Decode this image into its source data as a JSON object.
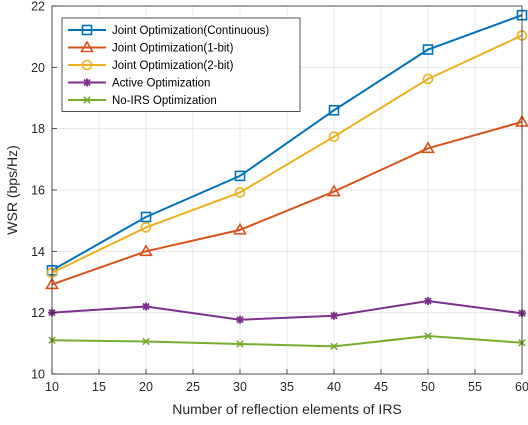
{
  "chart_data": {
    "type": "line",
    "xlabel": "Number of reflection elements of IRS",
    "ylabel": "WSR (bps/Hz)",
    "xlim": [
      10,
      60
    ],
    "ylim": [
      10,
      22
    ],
    "xticks": [
      "10",
      "15",
      "20",
      "25",
      "30",
      "35",
      "40",
      "45",
      "50",
      "55",
      "60"
    ],
    "yticks": [
      "10",
      "12",
      "14",
      "16",
      "18",
      "20",
      "22"
    ],
    "grid": true,
    "legend_position": "top-left",
    "x": [
      10,
      20,
      30,
      40,
      50,
      60
    ],
    "series": [
      {
        "name": "Joint Optimization(Continuous)",
        "color": "#0072BD",
        "marker": "square",
        "values": [
          13.38,
          15.12,
          16.46,
          18.6,
          20.58,
          21.7
        ]
      },
      {
        "name": "Joint Optimization(1-bit)",
        "color": "#D95319",
        "marker": "triangle",
        "values": [
          12.92,
          14.0,
          14.7,
          15.95,
          17.36,
          18.22
        ]
      },
      {
        "name": "Joint Optimization(2-bit)",
        "color": "#EDB120",
        "marker": "circle",
        "values": [
          13.3,
          14.78,
          15.92,
          17.74,
          19.62,
          21.04
        ]
      },
      {
        "name": "Active Optimization",
        "color": "#7E2F8E",
        "marker": "asterisk",
        "values": [
          12.0,
          12.2,
          11.77,
          11.9,
          12.38,
          11.98
        ]
      },
      {
        "name": "No-IRS Optimization",
        "color": "#77AC30",
        "marker": "x",
        "values": [
          11.1,
          11.06,
          10.98,
          10.9,
          11.24,
          11.02
        ]
      }
    ]
  }
}
